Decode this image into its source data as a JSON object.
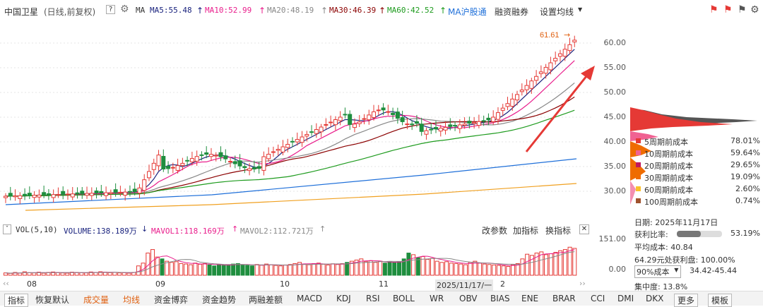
{
  "header": {
    "stock_name": "中国卫星",
    "mode": "(日线,前复权)",
    "ma_label": "MA",
    "ma5": "MA5:55.48",
    "ma10": "MA10:52.99",
    "ma20": "MA20:48.19",
    "ma30": "MA30:46.39",
    "ma60": "MA60:42.52",
    "ma_hsgt": "MA沪股通",
    "margin": "融资融券",
    "settings": "设置均线",
    "help": "?"
  },
  "colors": {
    "ma5": "#1a237e",
    "ma10": "#e91e8c",
    "ma20": "#888888",
    "ma30": "#8b0000",
    "ma60": "#1e9b1e",
    "ma120": "#1e6fd9",
    "ma250": "#f0a020",
    "up": "#e53935",
    "down": "#1e8e3e"
  },
  "price_axis": {
    "labels": [
      "60.00",
      "55.00",
      "50.00",
      "45.00",
      "40.00",
      "35.00",
      "30.00"
    ]
  },
  "max_marker": "61.61",
  "chip_panel": {
    "rows": [
      {
        "label": "5周期前成本",
        "pct": "78.01%",
        "color": "#e53935"
      },
      {
        "label": "10周期前成本",
        "pct": "59.64%",
        "color": "#f06292"
      },
      {
        "label": "20周期前成本",
        "pct": "29.65%",
        "color": "#c2185b"
      },
      {
        "label": "30周期前成本",
        "pct": "19.09%",
        "color": "#ef6c00"
      },
      {
        "label": "60周期前成本",
        "pct": "2.60%",
        "color": "#fbc02d"
      },
      {
        "label": "100周期前成本",
        "pct": "0.74%",
        "color": "#a0522d"
      }
    ]
  },
  "volume": {
    "label": "VOL(5,10)",
    "volume": "VOLUME:138.189万",
    "mavol1": "MAVOL1:118.169万",
    "mavol2": "MAVOL2:112.721万",
    "change_params": "改参数",
    "add_indicator": "加指标",
    "switch_indicator": "换指标",
    "axis_top": "151.00",
    "axis_bottom": "0.00",
    "bars": [
      10,
      8,
      12,
      9,
      15,
      11,
      10,
      13,
      9,
      12,
      14,
      11,
      10,
      9,
      13,
      12,
      11,
      10,
      14,
      12,
      15,
      13,
      11,
      12,
      10,
      11,
      9,
      12,
      40,
      52,
      95,
      110,
      78,
      70,
      60,
      55,
      58,
      50,
      48,
      45,
      52,
      47,
      50,
      44,
      40,
      46,
      42,
      45,
      48,
      50,
      44,
      42,
      40,
      46,
      43,
      48,
      45,
      42,
      40,
      44,
      46,
      50,
      55,
      48,
      45,
      50,
      52,
      47,
      44,
      49,
      46,
      50,
      55,
      60,
      65,
      70,
      58,
      62,
      55,
      60,
      52,
      57,
      54,
      58,
      70,
      95,
      88,
      75,
      80,
      68,
      72,
      60,
      55,
      58,
      52,
      50,
      48,
      45,
      55,
      60,
      52,
      48,
      46,
      44,
      42,
      40,
      38,
      45,
      50,
      70,
      90,
      85,
      95,
      100,
      88,
      92,
      98,
      105,
      110,
      120,
      115
    ]
  },
  "date_axis": {
    "labels": [
      "08",
      "09",
      "10",
      "11"
    ],
    "selected": "2025/11/17/一",
    "suffix": "2"
  },
  "info_panel": {
    "date_label": "日期: 2025年11月17日",
    "profit_label": "获利比率:",
    "profit_pct": "53.19%",
    "avg_cost": "平均成本: 40.84",
    "winning": "64.29元处获利盘: 100.00%",
    "cost_select": "90%成本",
    "cost_range": "34.42-45.44",
    "concentration": "集中度: 13.8%"
  },
  "bottom_tabs": [
    "指标",
    "恢复默认",
    "成交量",
    "均线",
    "资金博弈",
    "资金趋势",
    "两融差额",
    "MACD",
    "KDJ",
    "RSI",
    "BOLL",
    "WR",
    "OBV",
    "BIAS",
    "ENE",
    "BRAR",
    "CCI",
    "DMI",
    "DKX",
    "更多",
    "模板"
  ]
}
